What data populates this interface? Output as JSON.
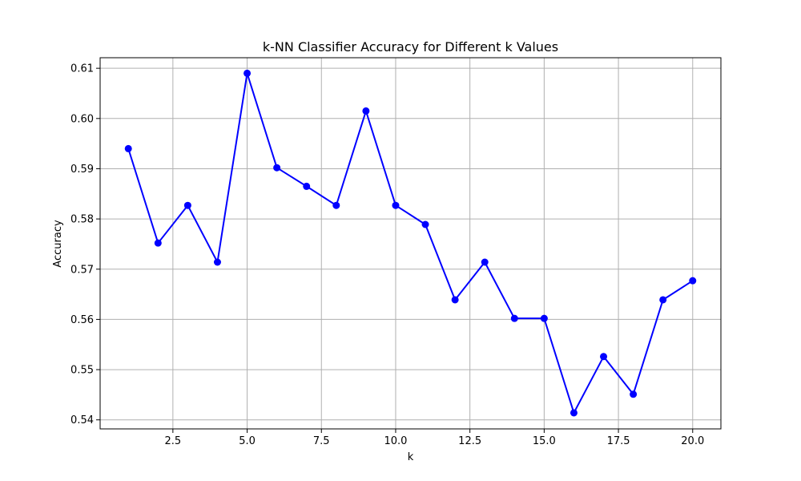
{
  "chart_data": {
    "type": "line",
    "title": "k-NN Classifier Accuracy for Different k Values",
    "xlabel": "k",
    "ylabel": "Accuracy",
    "xlim": [
      0.05,
      20.95
    ],
    "ylim": [
      0.5382,
      0.6121
    ],
    "x_ticks": [
      2.5,
      5.0,
      7.5,
      10.0,
      12.5,
      15.0,
      17.5,
      20.0
    ],
    "x_tick_labels": [
      "2.5",
      "5.0",
      "7.5",
      "10.0",
      "12.5",
      "15.0",
      "17.5",
      "20.0"
    ],
    "y_ticks": [
      0.54,
      0.55,
      0.56,
      0.57,
      0.58,
      0.59,
      0.6,
      0.61
    ],
    "y_tick_labels": [
      "0.54",
      "0.55",
      "0.56",
      "0.57",
      "0.58",
      "0.59",
      "0.60",
      "0.61"
    ],
    "grid": true,
    "series": [
      {
        "color": "#0000ff",
        "marker": "circle",
        "x": [
          1,
          2,
          3,
          4,
          5,
          6,
          7,
          8,
          9,
          10,
          11,
          12,
          13,
          14,
          15,
          16,
          17,
          18,
          19,
          20
        ],
        "y": [
          0.594,
          0.5752,
          0.5827,
          0.5714,
          0.609,
          0.5902,
          0.5865,
          0.5827,
          0.6015,
          0.5827,
          0.5789,
          0.5639,
          0.5714,
          0.5602,
          0.5602,
          0.5414,
          0.5526,
          0.5451,
          0.5639,
          0.5677
        ]
      }
    ]
  }
}
